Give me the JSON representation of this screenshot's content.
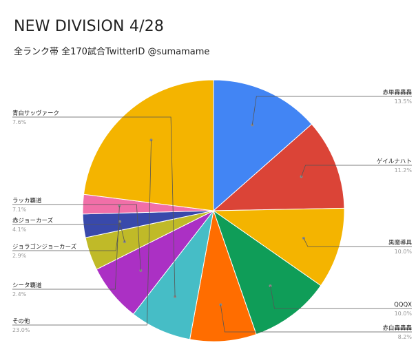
{
  "chart_data": {
    "type": "pie",
    "title": "NEW DIVISION 4/28",
    "subtitle": "全ランク帯 全170試合TwitterID @sumamame",
    "slices": [
      {
        "label": "赤単轟轟轟",
        "value": 13.5,
        "percent_label": "13.5%",
        "color": "#4285f4"
      },
      {
        "label": "ゲイルナハト",
        "value": 11.2,
        "percent_label": "11.2%",
        "color": "#db4437"
      },
      {
        "label": "黒魔導具",
        "value": 10.0,
        "percent_label": "10.0%",
        "color": "#f4b400"
      },
      {
        "label": "QQQX",
        "value": 10.0,
        "percent_label": "10.0%",
        "color": "#0f9d58"
      },
      {
        "label": "赤白轟轟轟",
        "value": 8.2,
        "percent_label": "8.2%",
        "color": "#ff6d00"
      },
      {
        "label": "青白サッヴァーク",
        "value": 7.6,
        "percent_label": "7.6%",
        "color": "#46bdc6"
      },
      {
        "label": "ラッカ覇道",
        "value": 7.1,
        "percent_label": "7.1%",
        "color": "#ab30c4"
      },
      {
        "label": "赤ジョーカーズ",
        "value": 4.1,
        "percent_label": "4.1%",
        "color": "#c0ba28"
      },
      {
        "label": "ジョラゴンジョーカーズ",
        "value": 2.9,
        "percent_label": "2.9%",
        "color": "#3949ab"
      },
      {
        "label": "シータ覇道",
        "value": 2.4,
        "percent_label": "2.4%",
        "color": "#f16fa8"
      },
      {
        "label": "その他",
        "value": 23.0,
        "percent_label": "23.0%",
        "color": "#f4b400"
      }
    ]
  }
}
